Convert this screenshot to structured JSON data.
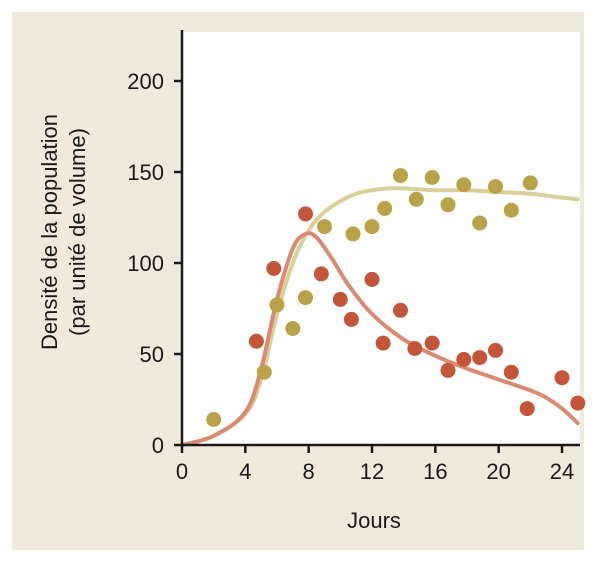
{
  "chart_data": {
    "type": "scatter",
    "title": "",
    "xlabel": "Jours",
    "ylabel_line1": "Densité de la population",
    "ylabel_line2": "(par unité de volume)",
    "xlim": [
      0,
      25.5
    ],
    "ylim": [
      0,
      225
    ],
    "xticks": [
      0,
      4,
      8,
      12,
      16,
      20,
      24
    ],
    "yticks": [
      0,
      50,
      100,
      150,
      200
    ],
    "grid": false,
    "legend": "none",
    "series": [
      {
        "color": "#b9a24a",
        "curve_color": "#d8cf9a",
        "points": [
          [
            2,
            14
          ],
          [
            5.2,
            40
          ],
          [
            6,
            77
          ],
          [
            7,
            64
          ],
          [
            7.8,
            81
          ],
          [
            9,
            120
          ],
          [
            10.8,
            116
          ],
          [
            12,
            120
          ],
          [
            12.8,
            130
          ],
          [
            13.8,
            148
          ],
          [
            14.8,
            135
          ],
          [
            15.8,
            147
          ],
          [
            16.8,
            132
          ],
          [
            17.8,
            143
          ],
          [
            18.8,
            122
          ],
          [
            19.8,
            142
          ],
          [
            20.8,
            129
          ],
          [
            22,
            144
          ]
        ],
        "curve": [
          [
            0,
            0
          ],
          [
            2,
            5
          ],
          [
            4,
            17
          ],
          [
            5,
            36
          ],
          [
            6,
            72
          ],
          [
            7,
            100
          ],
          [
            8,
            118
          ],
          [
            9,
            128
          ],
          [
            10,
            134
          ],
          [
            11,
            138
          ],
          [
            12,
            140
          ],
          [
            13,
            141
          ],
          [
            14,
            141
          ],
          [
            16,
            140
          ],
          [
            18,
            140
          ],
          [
            20,
            139
          ],
          [
            22,
            138
          ],
          [
            24,
            136
          ],
          [
            25,
            135
          ]
        ]
      },
      {
        "color": "#c3553a",
        "curve_color": "#d98a72",
        "points": [
          [
            4.7,
            57
          ],
          [
            5.8,
            97
          ],
          [
            7.8,
            127
          ],
          [
            8.8,
            94
          ],
          [
            10,
            80
          ],
          [
            10.7,
            69
          ],
          [
            12,
            91
          ],
          [
            12.7,
            56
          ],
          [
            13.8,
            74
          ],
          [
            14.7,
            53
          ],
          [
            15.8,
            56
          ],
          [
            16.8,
            41
          ],
          [
            17.8,
            47
          ],
          [
            18.8,
            48
          ],
          [
            19.8,
            52
          ],
          [
            20.8,
            40
          ],
          [
            21.8,
            20
          ],
          [
            24,
            37
          ],
          [
            25,
            23
          ]
        ],
        "curve": [
          [
            0,
            0
          ],
          [
            2,
            5
          ],
          [
            4,
            18
          ],
          [
            5,
            42
          ],
          [
            6,
            80
          ],
          [
            7,
            108
          ],
          [
            7.8,
            116
          ],
          [
            8.5,
            114
          ],
          [
            9.5,
            102
          ],
          [
            10.5,
            88
          ],
          [
            12,
            72
          ],
          [
            14,
            58
          ],
          [
            16,
            49
          ],
          [
            18,
            42
          ],
          [
            20,
            36
          ],
          [
            22,
            30
          ],
          [
            23,
            26
          ],
          [
            24,
            20
          ],
          [
            25,
            12
          ]
        ]
      }
    ]
  }
}
